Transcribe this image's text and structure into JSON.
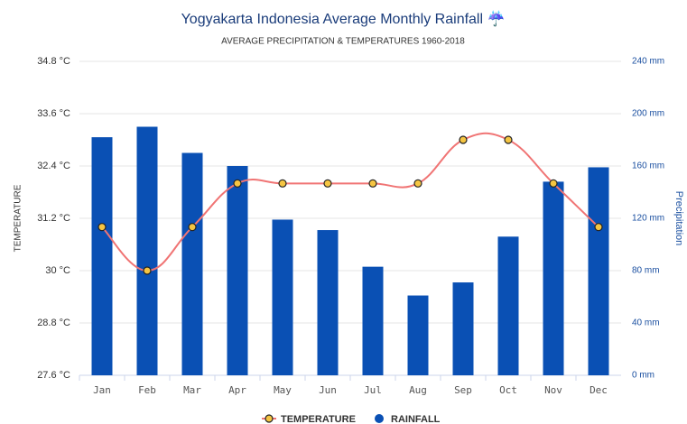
{
  "chart_data": {
    "type": "bar-line",
    "title": "Yogyakarta Indonesia Average Monthly Rainfall ☔",
    "subtitle": "AVERAGE PRECIPITATION & TEMPERATURES 1960-2018",
    "y_label": "TEMPERATURE",
    "y2_label": "Precipitation",
    "categories": [
      "Jan",
      "Feb",
      "Mar",
      "Apr",
      "May",
      "Jun",
      "Jul",
      "Aug",
      "Sep",
      "Oct",
      "Nov",
      "Dec"
    ],
    "series": [
      {
        "name": "TEMPERATURE",
        "type": "line",
        "axis": "y",
        "color": "#f07474",
        "marker_color": "#f5c542",
        "values": [
          31.0,
          30.0,
          31.0,
          32.0,
          32.0,
          32.0,
          32.0,
          32.0,
          33.0,
          33.0,
          32.0,
          31.0
        ]
      },
      {
        "name": "RAINFALL",
        "type": "bar",
        "axis": "y2",
        "color": "#0a50b4",
        "values": [
          182,
          190,
          170,
          160,
          119,
          111,
          83,
          61,
          71,
          106,
          148,
          159
        ]
      }
    ],
    "ylim": [
      27.6,
      34.8
    ],
    "yticks": [
      {
        "value": 27.6,
        "label": "27.6 °C"
      },
      {
        "value": 28.8,
        "label": "28.8 °C"
      },
      {
        "value": 30,
        "label": "30 °C"
      },
      {
        "value": 31.2,
        "label": "31.2 °C"
      },
      {
        "value": 32.4,
        "label": "32.4 °C"
      },
      {
        "value": 33.6,
        "label": "33.6 °C"
      },
      {
        "value": 34.8,
        "label": "34.8 °C"
      }
    ],
    "y2lim": [
      0,
      240
    ],
    "y2ticks": [
      {
        "value": 0,
        "label": "0 mm"
      },
      {
        "value": 40,
        "label": "40 mm"
      },
      {
        "value": 80,
        "label": "80 mm"
      },
      {
        "value": 120,
        "label": "120 mm"
      },
      {
        "value": 160,
        "label": "160 mm"
      },
      {
        "value": 200,
        "label": "200 mm"
      },
      {
        "value": 240,
        "label": "240 mm"
      }
    ],
    "grid": true
  }
}
